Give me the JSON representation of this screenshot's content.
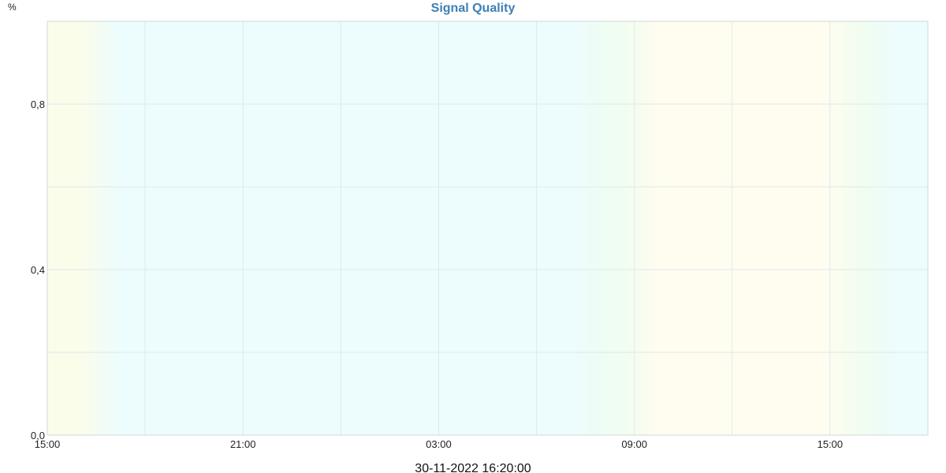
{
  "chart_data": {
    "type": "line",
    "title": "Signal Quality",
    "ylabel": "%",
    "xlabel": "",
    "ylim": [
      0,
      1
    ],
    "y_ticks": [
      "0,0",
      "0,4",
      "0,8"
    ],
    "x_ticks": [
      "15:00",
      "21:00",
      "03:00",
      "09:00",
      "15:00"
    ],
    "x_range_hours": [
      0,
      27
    ],
    "x_tick_hours": [
      0,
      6,
      12,
      18,
      24
    ],
    "grid": true,
    "series": [],
    "timestamp": "30-11-2022 16:20:00",
    "background_bands": [
      {
        "from_hour": 0,
        "to_hour": 1.6,
        "color": "#fafdea"
      },
      {
        "from_hour": 1.6,
        "to_hour": 16.8,
        "color": "#edfcfd"
      },
      {
        "from_hour": 16.8,
        "to_hour": 18.2,
        "color": "#f0fdf0"
      },
      {
        "from_hour": 18.2,
        "to_hour": 24.4,
        "color": "#fffdf0"
      },
      {
        "from_hour": 24.4,
        "to_hour": 25.4,
        "color": "#f0fdf0"
      },
      {
        "from_hour": 25.4,
        "to_hour": 27,
        "color": "#edfcfd"
      }
    ],
    "colors": {
      "title": "#3e7fb6",
      "grid": "#e2e8ea",
      "axis": "#d0d8da"
    }
  }
}
